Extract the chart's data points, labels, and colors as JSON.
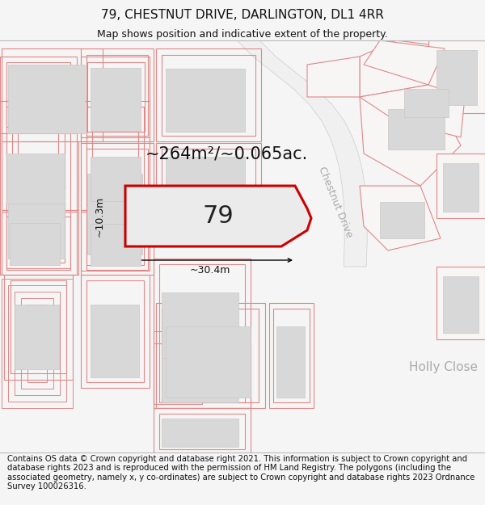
{
  "title_line1": "79, CHESTNUT DRIVE, DARLINGTON, DL1 4RR",
  "title_line2": "Map shows position and indicative extent of the property.",
  "footer_text": "Contains OS data © Crown copyright and database right 2021. This information is subject to Crown copyright and database rights 2023 and is reproduced with the permission of HM Land Registry. The polygons (including the associated geometry, namely x, y co-ordinates) are subject to Crown copyright and database rights 2023 Ordnance Survey 100026316.",
  "area_label": "~264m²/~0.065ac.",
  "width_label": "~30.4m",
  "height_label": "~10.3m",
  "plot_number": "79",
  "bg_color": "#f5f5f5",
  "map_bg": "#ffffff",
  "plot_fill": "#ebebeb",
  "plot_outline": "#cc0000",
  "building_fill": "#d8d8d8",
  "building_outline": "#c8c8c8",
  "plot_line_color": "#e08888",
  "road_label_color": "#aaaaaa",
  "title_fontsize": 11,
  "subtitle_fontsize": 9,
  "footer_fontsize": 7.2,
  "area_fontsize": 15,
  "dim_fontsize": 9,
  "plot_num_fontsize": 22,
  "road_name_fontsize": 9,
  "holly_fontsize": 11
}
